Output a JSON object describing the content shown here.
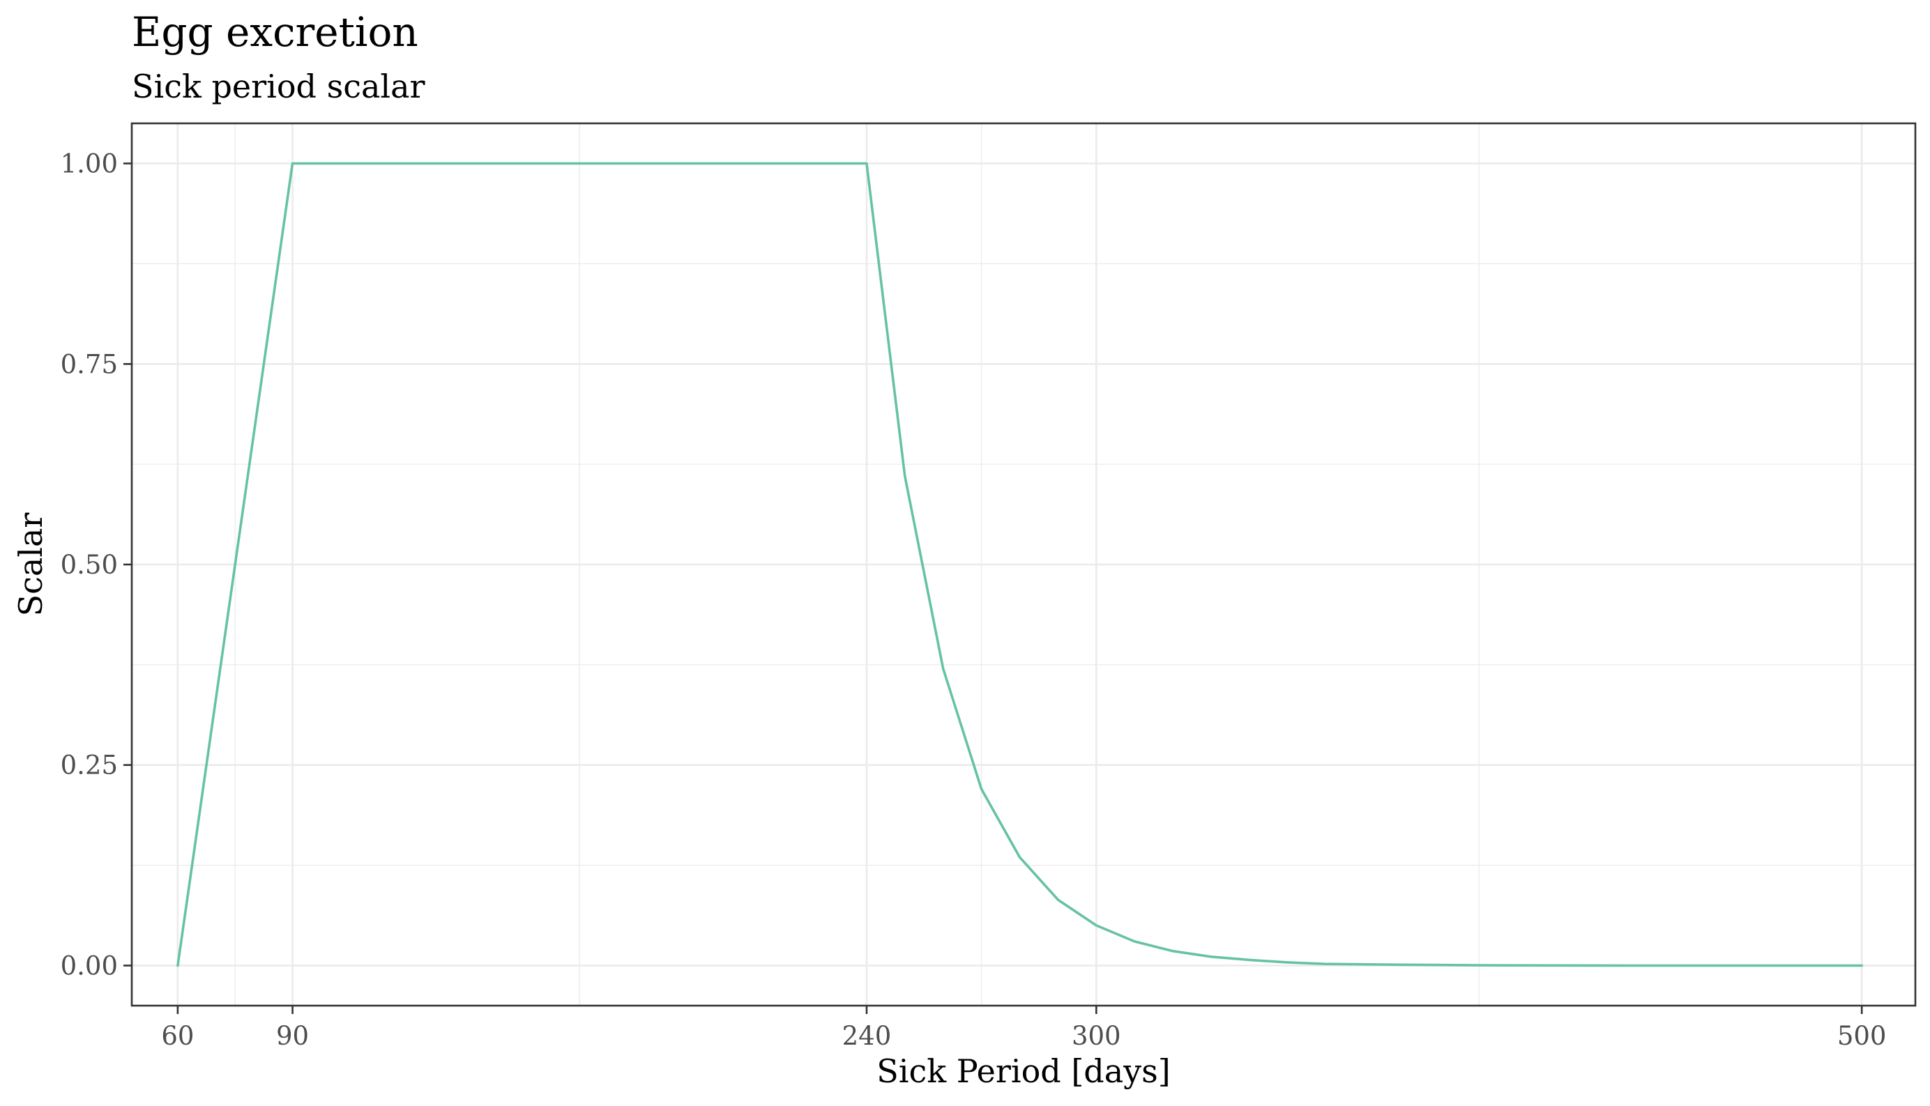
{
  "chart_data": {
    "type": "line",
    "title": "Egg excretion",
    "subtitle": "Sick period scalar",
    "xlabel": "Sick Period [days]",
    "ylabel": "Scalar",
    "xlim": [
      48,
      514
    ],
    "ylim": [
      -0.05,
      1.05
    ],
    "x_ticks": [
      60,
      90,
      240,
      300,
      500
    ],
    "x_tick_labels": [
      "60",
      "90",
      "240",
      "300",
      "500"
    ],
    "x_minor_ticks": [
      75,
      165,
      270,
      400
    ],
    "y_ticks": [
      0,
      0.25,
      0.5,
      0.75,
      1.0
    ],
    "y_tick_labels": [
      "0.00",
      "0.25",
      "0.50",
      "0.75",
      "1.00"
    ],
    "y_minor_ticks": [
      0.125,
      0.375,
      0.625,
      0.875
    ],
    "grid": true,
    "series": [
      {
        "color": "#66c2a5",
        "x": [
          60,
          90,
          240,
          250,
          260,
          270,
          280,
          290,
          300,
          310,
          320,
          330,
          340,
          350,
          360,
          380,
          400,
          420,
          440,
          460,
          480,
          500
        ],
        "y": [
          0,
          1,
          1,
          0.61,
          0.37,
          0.22,
          0.135,
          0.082,
          0.05,
          0.03,
          0.018,
          0.011,
          0.007,
          0.004,
          0.002,
          0.001,
          0.0003,
          0.0001,
          0,
          0,
          0,
          0
        ]
      }
    ]
  }
}
